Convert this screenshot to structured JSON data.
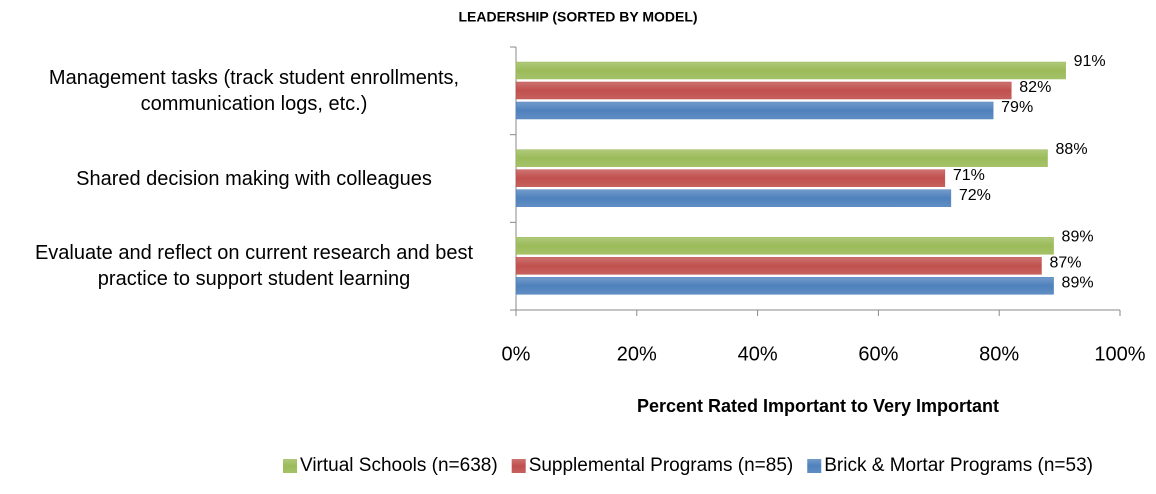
{
  "chart_data": {
    "type": "hbar",
    "title": "LEADERSHIP (SORTED BY MODEL)",
    "x_label": "Percent Rated Important to Very Important",
    "categories": [
      "Management tasks (track student enrollments, communication logs, etc.)",
      "Shared decision making with colleagues",
      "Evaluate and reflect on current research and best practice to support student learning"
    ],
    "series": [
      {
        "name": "Virtual Schools (n=638)",
        "color": "#9bbb59",
        "values": [
          91,
          88,
          89
        ],
        "value_labels": [
          "91%",
          "88%",
          "89%"
        ]
      },
      {
        "name": "Supplemental Programs (n=85)",
        "color": "#c0504d",
        "values": [
          82,
          71,
          87
        ],
        "value_labels": [
          "82%",
          "71%",
          "87%"
        ]
      },
      {
        "name": "Brick & Mortar Programs (n=53)",
        "color": "#4f81bd",
        "values": [
          79,
          72,
          89
        ],
        "value_labels": [
          "79%",
          "72%",
          "89%"
        ]
      }
    ],
    "xlim": [
      0,
      100
    ],
    "xticks": [
      {
        "value": 0,
        "label": "0%"
      },
      {
        "value": 20,
        "label": "20%"
      },
      {
        "value": 40,
        "label": "40%"
      },
      {
        "value": 60,
        "label": "60%"
      },
      {
        "value": 80,
        "label": "80%"
      },
      {
        "value": 100,
        "label": "100%"
      }
    ],
    "grid": false,
    "legend": "bottom"
  }
}
